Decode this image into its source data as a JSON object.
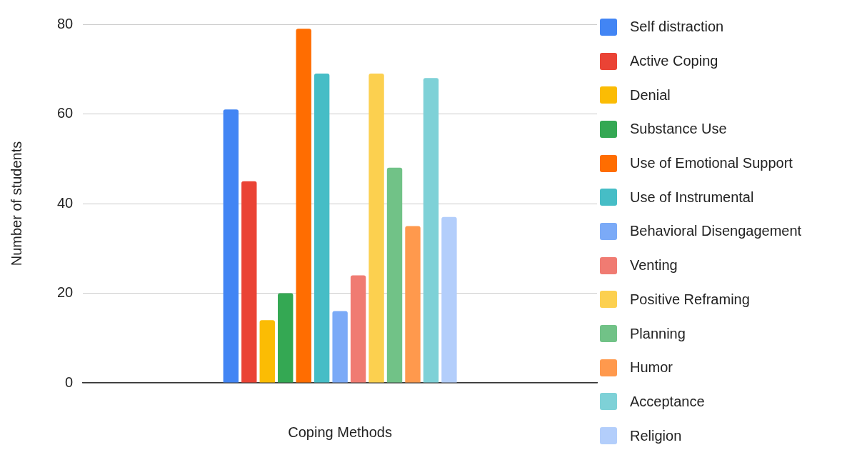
{
  "chart_data": {
    "type": "bar",
    "xlabel": "Coping Methods",
    "ylabel": "Number of students",
    "categories": [
      null
    ],
    "series": [
      {
        "name": "Self distraction",
        "color": "#4285f4",
        "values": [
          61
        ]
      },
      {
        "name": "Active Coping",
        "color": "#ea4335",
        "values": [
          45
        ]
      },
      {
        "name": "Denial",
        "color": "#fbbc04",
        "values": [
          14
        ]
      },
      {
        "name": "Substance Use",
        "color": "#34a853",
        "values": [
          20
        ]
      },
      {
        "name": "Use of Emotional Support",
        "color": "#ff6d01",
        "values": [
          79
        ]
      },
      {
        "name": "Use of Instrumental",
        "color": "#46bdc6",
        "values": [
          69
        ]
      },
      {
        "name": "Behavioral Disengagement",
        "color": "#7baaf7",
        "values": [
          16
        ]
      },
      {
        "name": "Venting",
        "color": "#f07b72",
        "values": [
          24
        ]
      },
      {
        "name": "Positive Reframing",
        "color": "#fcd04f",
        "values": [
          69
        ]
      },
      {
        "name": "Planning",
        "color": "#71c287",
        "values": [
          48
        ]
      },
      {
        "name": "Humor",
        "color": "#ff994d",
        "values": [
          35
        ]
      },
      {
        "name": "Acceptance",
        "color": "#7ed1d7",
        "values": [
          68
        ]
      },
      {
        "name": "Religion",
        "color": "#b3cefb",
        "values": [
          37
        ]
      }
    ],
    "ylim": [
      0,
      80
    ],
    "yticks": [
      0,
      20,
      40,
      60,
      80
    ],
    "grid": "y",
    "legend": "right"
  }
}
